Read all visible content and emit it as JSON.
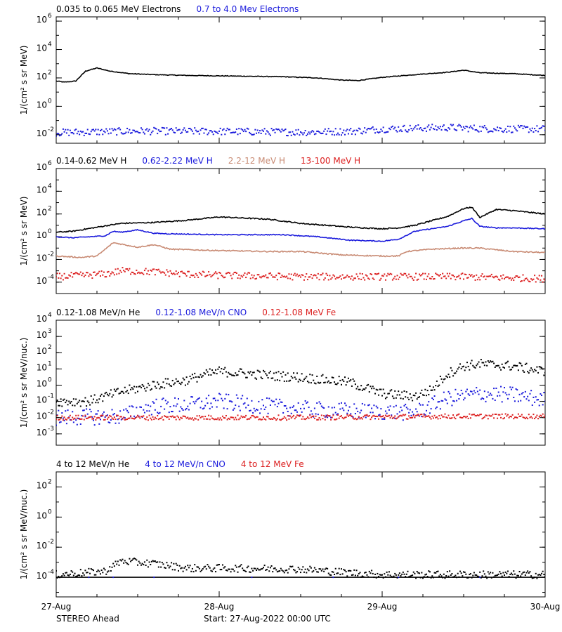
{
  "colors": {
    "black": "#000000",
    "blue": "#1a1adc",
    "tan": "#c88a73",
    "red": "#dc2020"
  },
  "footer": {
    "spacecraft": "STEREO Ahead",
    "start": "Start: 27-Aug-2022 00:00 UTC"
  },
  "chart_data": [
    {
      "type": "scatter",
      "scale": "log",
      "ylabel": "1/(cm² s sr MeV)",
      "ylim": [
        0.0025,
        2000000
      ],
      "yticks": [
        {
          "v": 1000000,
          "m": "6"
        },
        {
          "v": 10000,
          "m": "4"
        },
        {
          "v": 100,
          "m": "2"
        },
        {
          "v": 1,
          "m": "0"
        },
        {
          "v": 0.01,
          "m": "-2"
        }
      ],
      "legend": [
        {
          "label": "0.035 to 0.065 MeV Electrons",
          "color": "black"
        },
        {
          "label": "0.7 to 4.0 Mev Electrons",
          "color": "blue"
        }
      ],
      "series": [
        {
          "color": "black",
          "style": "line",
          "noise": 0.025,
          "x": [
            0,
            0.05,
            0.12,
            0.18,
            0.25,
            0.33,
            0.45,
            0.6,
            0.8,
            1.0,
            1.2,
            1.4,
            1.6,
            1.75,
            1.85,
            2.0,
            2.2,
            2.4,
            2.5,
            2.6,
            2.8,
            3.0
          ],
          "y": [
            60,
            50,
            60,
            300,
            500,
            300,
            200,
            170,
            150,
            140,
            130,
            120,
            100,
            70,
            65,
            110,
            170,
            250,
            350,
            230,
            200,
            150
          ]
        },
        {
          "color": "blue",
          "style": "dots",
          "noise": 0.25,
          "x": [
            0,
            0.5,
            1.0,
            1.5,
            1.8,
            2.0,
            2.4,
            2.7,
            3.0
          ],
          "y": [
            0.014,
            0.018,
            0.017,
            0.015,
            0.017,
            0.025,
            0.032,
            0.025,
            0.025
          ]
        }
      ]
    },
    {
      "type": "scatter",
      "scale": "log",
      "ylabel": "1/(cm² s sr MeV)",
      "ylim": [
        1e-05,
        1000000
      ],
      "yticks": [
        {
          "v": 1000000,
          "m": "6"
        },
        {
          "v": 10000,
          "m": "4"
        },
        {
          "v": 100,
          "m": "2"
        },
        {
          "v": 1,
          "m": "0"
        },
        {
          "v": 0.01,
          "m": "-2"
        },
        {
          "v": 0.0001,
          "m": "-4"
        }
      ],
      "legend": [
        {
          "label": "0.14-0.62 MeV H",
          "color": "black"
        },
        {
          "label": "0.62-2.22 MeV H",
          "color": "blue"
        },
        {
          "label": "2.2-12 MeV H",
          "color": "tan"
        },
        {
          "label": "13-100 MeV H",
          "color": "red"
        }
      ],
      "series": [
        {
          "color": "black",
          "style": "line",
          "noise": 0.05,
          "x": [
            0,
            0.1,
            0.3,
            0.4,
            0.6,
            0.8,
            1.0,
            1.3,
            1.5,
            1.8,
            2.0,
            2.1,
            2.2,
            2.4,
            2.5,
            2.55,
            2.6,
            2.7,
            2.8,
            3.0
          ],
          "y": [
            2.5,
            3,
            9,
            15,
            18,
            28,
            55,
            35,
            15,
            7,
            5,
            6,
            10,
            60,
            300,
            400,
            50,
            250,
            200,
            100
          ]
        },
        {
          "color": "blue",
          "style": "line",
          "noise": 0.04,
          "x": [
            0,
            0.1,
            0.3,
            0.35,
            0.4,
            0.5,
            0.6,
            0.7,
            1.0,
            1.4,
            1.6,
            1.8,
            2.0,
            2.1,
            2.2,
            2.4,
            2.5,
            2.55,
            2.6,
            2.7,
            2.8,
            3.0
          ],
          "y": [
            1,
            0.8,
            1.2,
            3,
            2.5,
            4,
            2,
            1.8,
            1.5,
            1.5,
            1.0,
            0.5,
            0.4,
            0.6,
            3,
            8,
            25,
            40,
            8,
            6,
            6,
            5
          ]
        },
        {
          "color": "tan",
          "style": "line",
          "noise": 0.05,
          "x": [
            0,
            0.15,
            0.25,
            0.35,
            0.5,
            0.6,
            0.7,
            1.0,
            1.3,
            1.5,
            1.75,
            2.0,
            2.1,
            2.15,
            2.3,
            2.5,
            2.6,
            2.8,
            3.0
          ],
          "y": [
            0.02,
            0.015,
            0.02,
            0.3,
            0.12,
            0.2,
            0.08,
            0.06,
            0.05,
            0.05,
            0.025,
            0.02,
            0.02,
            0.05,
            0.08,
            0.1,
            0.1,
            0.05,
            0.04
          ]
        },
        {
          "color": "red",
          "style": "dots",
          "noise": 0.3,
          "x": [
            0,
            0.3,
            0.4,
            0.6,
            0.8,
            1.0,
            1.5,
            2.0,
            2.5,
            3.0
          ],
          "y": [
            0.0003,
            0.0005,
            0.001,
            0.0008,
            0.0005,
            0.0004,
            0.0003,
            0.0003,
            0.0003,
            0.0002
          ]
        }
      ]
    },
    {
      "type": "scatter",
      "scale": "log",
      "ylabel": "1/(cm² s sr MeV/nuc.)",
      "ylim": [
        0.0002,
        10000
      ],
      "yticks": [
        {
          "v": 10000,
          "m": "4"
        },
        {
          "v": 1000,
          "m": "3"
        },
        {
          "v": 100,
          "m": "2"
        },
        {
          "v": 10,
          "m": "1"
        },
        {
          "v": 1,
          "m": "0"
        },
        {
          "v": 0.1,
          "m": "-1"
        },
        {
          "v": 0.01,
          "m": "-2"
        },
        {
          "v": 0.001,
          "m": "-3"
        }
      ],
      "legend": [
        {
          "label": "0.12-1.08 MeV/n He",
          "color": "black"
        },
        {
          "label": "0.12-1.08 MeV/n CNO",
          "color": "blue"
        },
        {
          "label": "0.12-1.08 MeV Fe",
          "color": "red"
        }
      ],
      "series": [
        {
          "color": "black",
          "style": "dots",
          "noise": 0.3,
          "x": [
            0,
            0.2,
            0.3,
            0.4,
            0.6,
            0.8,
            0.9,
            1.0,
            1.3,
            1.5,
            1.8,
            2.0,
            2.2,
            2.3,
            2.4,
            2.5,
            2.6,
            2.8,
            3.0
          ],
          "y": [
            0.1,
            0.1,
            0.2,
            0.4,
            1,
            2,
            4,
            7,
            4,
            3,
            1.5,
            0.3,
            0.2,
            0.5,
            5,
            15,
            20,
            15,
            7
          ]
        },
        {
          "color": "blue",
          "style": "dots",
          "noise": 0.5,
          "x": [
            0,
            0.4,
            0.6,
            0.8,
            1.0,
            1.3,
            1.6,
            2.2,
            2.4,
            2.6,
            2.8,
            3.0
          ],
          "y": [
            0.01,
            0.012,
            0.05,
            0.06,
            0.1,
            0.05,
            0.03,
            0.02,
            0.15,
            0.3,
            0.25,
            0.12
          ]
        },
        {
          "color": "red",
          "style": "dots",
          "noise": 0.15,
          "x": [
            0,
            1.5,
            2.4,
            3.0
          ],
          "y": [
            0.01,
            0.01,
            0.012,
            0.012
          ]
        }
      ]
    },
    {
      "type": "scatter",
      "scale": "log",
      "ylabel": "1/(cm² s sr MeV/nuc.)",
      "ylim": [
        5e-06,
        1000
      ],
      "yticks": [
        {
          "v": 100,
          "m": "2"
        },
        {
          "v": 1,
          "m": "0"
        },
        {
          "v": 0.01,
          "m": "-2"
        },
        {
          "v": 0.0001,
          "m": "-4"
        }
      ],
      "legend": [
        {
          "label": "4 to 12 MeV/n He",
          "color": "black"
        },
        {
          "label": "4 to 12 MeV/n CNO",
          "color": "blue"
        },
        {
          "label": "4 to 12 MeV Fe",
          "color": "red"
        }
      ],
      "series": [
        {
          "color": "black",
          "style": "dots",
          "noise": 0.25,
          "x": [
            0,
            0.3,
            0.4,
            0.6,
            0.8,
            1.0,
            1.5,
            1.8,
            2.0,
            2.5,
            3.0
          ],
          "y": [
            0.00015,
            0.00025,
            0.0012,
            0.0008,
            0.0004,
            0.0004,
            0.00035,
            0.0002,
            0.00015,
            0.00015,
            0.00015
          ]
        },
        {
          "color": "black",
          "style": "line",
          "noise": 0.0,
          "x": [
            0,
            3.0
          ],
          "y": [
            0.0001,
            0.0001
          ]
        },
        {
          "color": "blue",
          "style": "sparse",
          "noise": 0.0,
          "x": [
            0.2,
            0.35,
            0.6,
            1.2,
            1.7,
            2.1,
            2.6
          ],
          "y": [
            0.0001,
            0.0001,
            0.0001,
            0.0001,
            0.0001,
            0.0001,
            0.0001
          ]
        }
      ]
    }
  ],
  "x_axis": {
    "range": [
      0,
      3
    ],
    "ticks": [
      {
        "v": 0,
        "label": "27-Aug"
      },
      {
        "v": 1,
        "label": "28-Aug"
      },
      {
        "v": 2,
        "label": "29-Aug"
      },
      {
        "v": 3,
        "label": "30-Aug"
      }
    ]
  }
}
